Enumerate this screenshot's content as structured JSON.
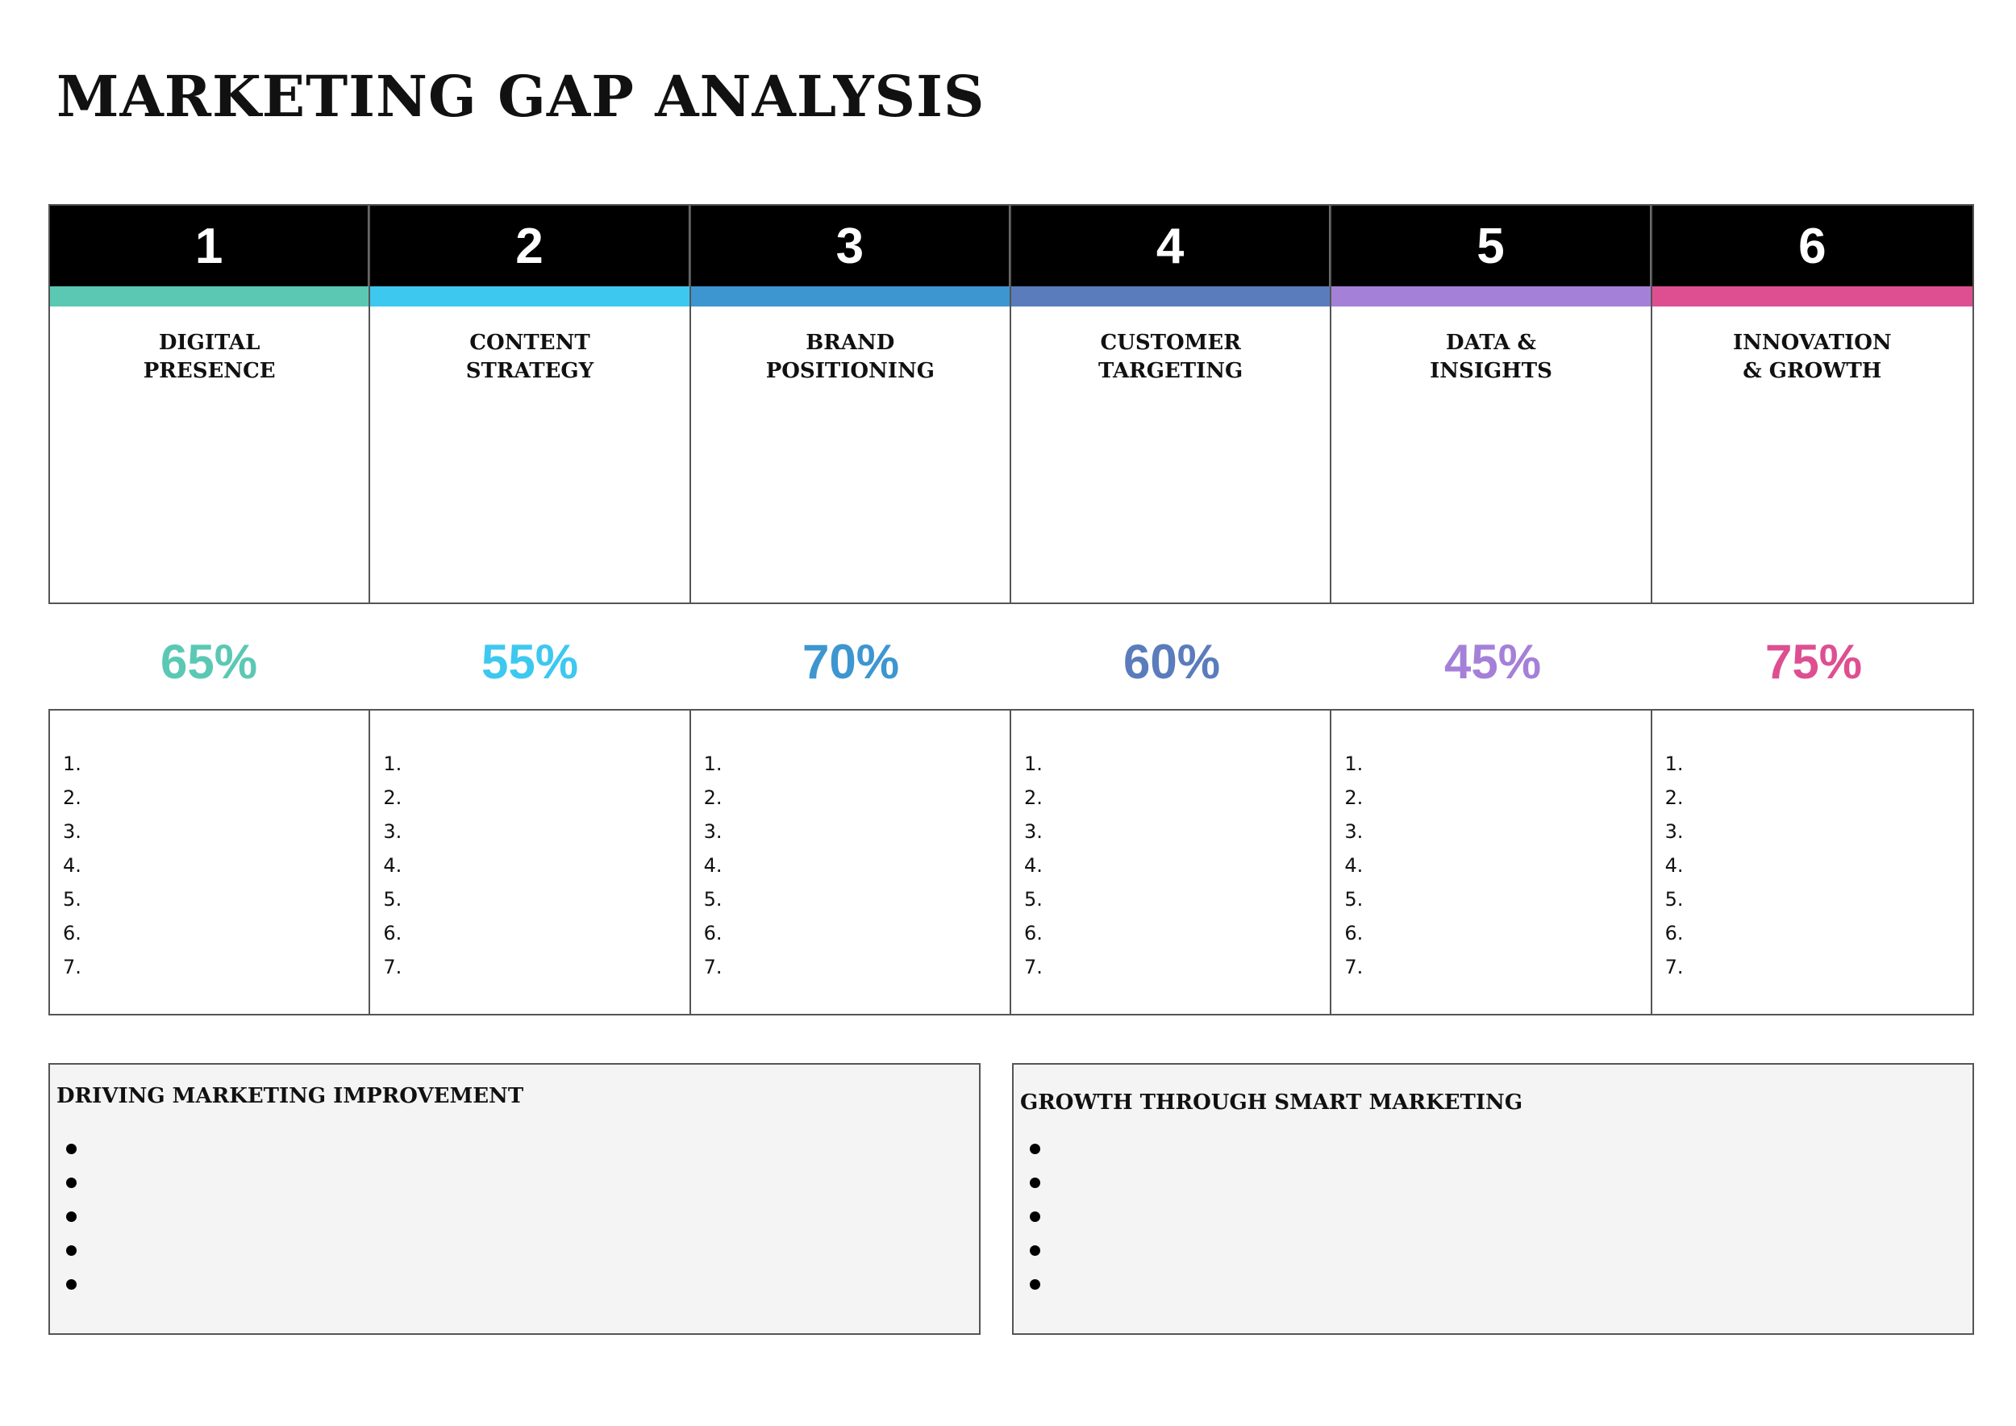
{
  "title": "MARKETING GAP ANALYSIS",
  "columns": [
    {
      "number": "1",
      "line1": "DIGITAL",
      "line2": "PRESENCE",
      "percent": "65%",
      "color": "#5bc8b4"
    },
    {
      "number": "2",
      "line1": "CONTENT",
      "line2": "STRATEGY",
      "percent": "55%",
      "color": "#3dc8f0"
    },
    {
      "number": "3",
      "line1": "BRAND",
      "line2": "POSITIONING",
      "percent": "70%",
      "color": "#3d96d0"
    },
    {
      "number": "4",
      "line1": "CUSTOMER",
      "line2": "TARGETING",
      "percent": "60%",
      "color": "#5a7cbc"
    },
    {
      "number": "5",
      "line1": "DATA &",
      "line2": "INSIGHTS",
      "percent": "45%",
      "color": "#a580d8"
    },
    {
      "number": "6",
      "line1": "INNOVATION",
      "line2": "& GROWTH",
      "percent": "75%",
      "color": "#de4f91"
    }
  ],
  "list_numbers": [
    "1.",
    "2.",
    "3.",
    "4.",
    "5.",
    "6.",
    "7."
  ],
  "notes": {
    "left_title": "DRIVING MARKETING IMPROVEMENT",
    "right_title": "GROWTH THROUGH SMART MARKETING"
  }
}
